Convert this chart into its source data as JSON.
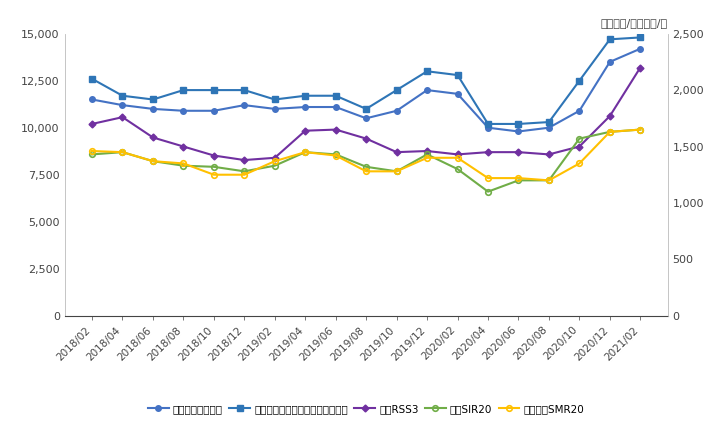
{
  "title_unit": "单位：元/吨，美元/吨",
  "x_labels": [
    "2018/02",
    "2018/04",
    "2018/06",
    "2018/08",
    "2018/10",
    "2018/12",
    "2019/02",
    "2019/04",
    "2019/06",
    "2019/08",
    "2019/10",
    "2019/12",
    "2020/02",
    "2020/04",
    "2020/06",
    "2020/08",
    "2020/10",
    "2020/12",
    "2021/02"
  ],
  "shanghai_quanru": [
    11500,
    11200,
    11000,
    10900,
    10900,
    11200,
    11000,
    11100,
    11100,
    10500,
    10900,
    12000,
    11800,
    10000,
    9800,
    10000,
    10900,
    13500,
    14200
  ],
  "shanghai_futures": [
    12600,
    11700,
    11500,
    12000,
    12000,
    12000,
    11500,
    11700,
    11700,
    11000,
    12000,
    13000,
    12800,
    10200,
    10200,
    10300,
    12500,
    14700,
    14800
  ],
  "thailand_rss3": [
    1700,
    1760,
    1580,
    1500,
    1420,
    1380,
    1400,
    1640,
    1650,
    1570,
    1450,
    1460,
    1430,
    1450,
    1450,
    1430,
    1500,
    1770,
    2200
  ],
  "indonesia_sir20": [
    1430,
    1450,
    1370,
    1330,
    1320,
    1280,
    1330,
    1450,
    1430,
    1320,
    1280,
    1430,
    1300,
    1100,
    1200,
    1200,
    1570,
    1630,
    1650
  ],
  "malaysia_smr20": [
    1460,
    1450,
    1370,
    1350,
    1250,
    1250,
    1370,
    1450,
    1420,
    1280,
    1280,
    1400,
    1400,
    1220,
    1220,
    1200,
    1350,
    1630,
    1650
  ],
  "ylim_left": [
    0,
    15000
  ],
  "ylim_right": [
    0,
    2500
  ],
  "yticks_left": [
    0,
    2500,
    5000,
    7500,
    10000,
    12500,
    15000
  ],
  "yticks_right": [
    0,
    500,
    1000,
    1500,
    2000,
    2500
  ],
  "color_quanru": "#4472C4",
  "color_futures": "#2E75B6",
  "color_rss3": "#7030A0",
  "color_sir20": "#70AD47",
  "color_smr20": "#FFC000",
  "legend_labels": [
    "上海、山东全乳胶",
    "上海期货交易所天然橡胶主力合约",
    "泰国RSS3",
    "印尼SIR20",
    "马来西亚SMR20"
  ],
  "background_color": "#FFFFFF"
}
